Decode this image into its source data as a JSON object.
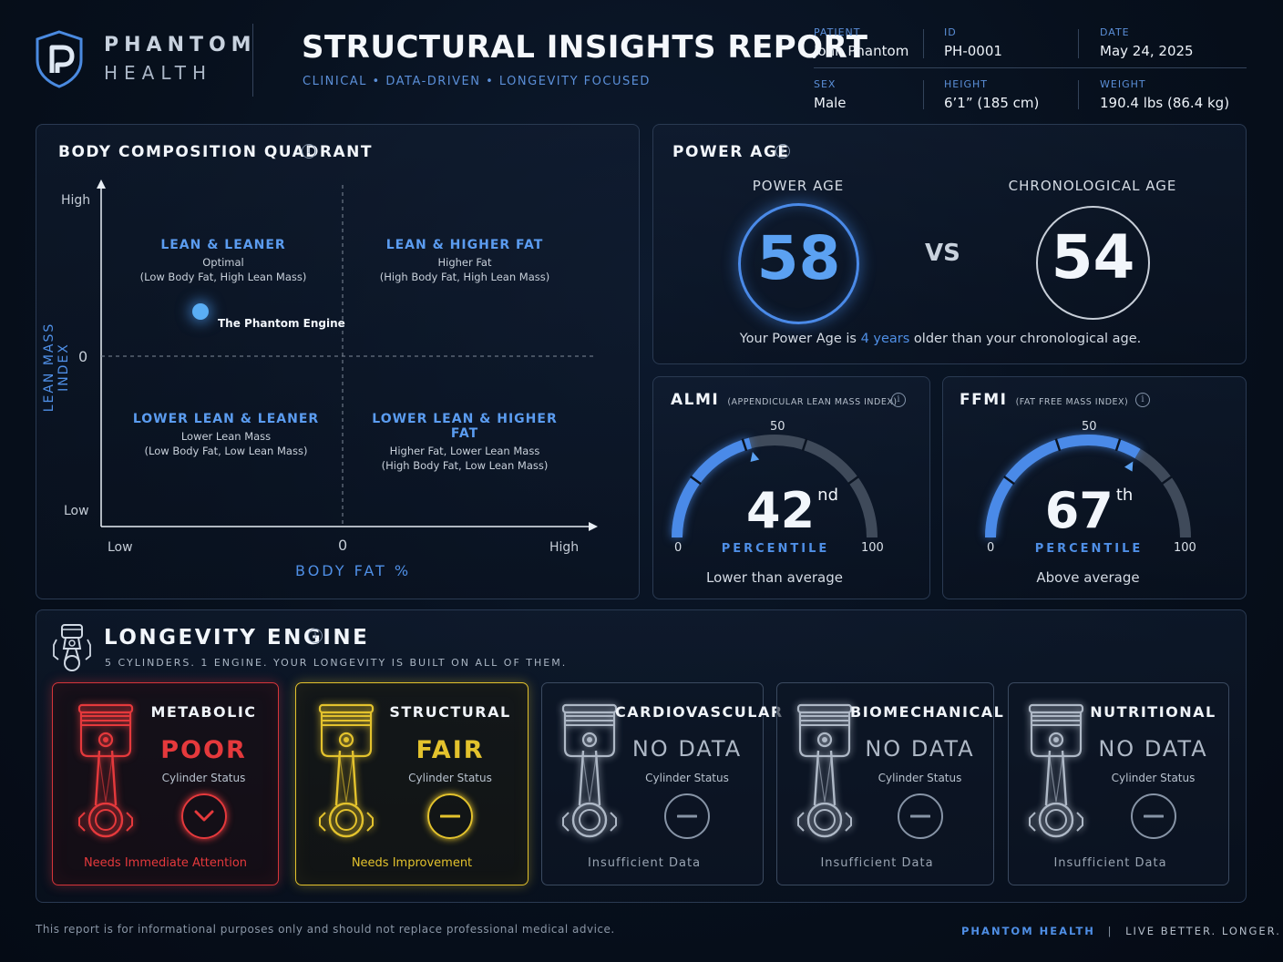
{
  "brand": {
    "line1": "PHANTOM",
    "line2": "HEALTH"
  },
  "report": {
    "title": "STRUCTURAL INSIGHTS REPORT",
    "subtitle": "CLINICAL  •  DATA-DRIVEN  •  LONGEVITY FOCUSED"
  },
  "patient": {
    "patient_label": "PATIENT",
    "patient_value": "John Phantom",
    "id_label": "ID",
    "id_value": "PH-0001",
    "date_label": "DATE",
    "date_value": "May 24, 2025",
    "sex_label": "SEX",
    "sex_value": "Male",
    "height_label": "HEIGHT",
    "height_value": "6’1” (185 cm)",
    "weight_label": "WEIGHT",
    "weight_value": "190.4 lbs (86.4 kg)"
  },
  "quadrant": {
    "title": "BODY COMPOSITION QUADRANT",
    "y_axis_label": "LEAN MASS INDEX",
    "x_axis_label": "BODY FAT %",
    "y_high": "High",
    "y_zero": "0",
    "y_low": "Low",
    "x_low": "Low",
    "x_zero": "0",
    "x_high": "High",
    "q1": {
      "head": "LEAN & LEANER",
      "line1": "Optimal",
      "line2": "(Low Body Fat, High Lean Mass)"
    },
    "q2": {
      "head": "LEAN & HIGHER FAT",
      "line1": "Higher Fat",
      "line2": "(High Body Fat, High Lean Mass)"
    },
    "q3": {
      "head": "LOWER LEAN & LEANER",
      "line1": "Lower Lean Mass",
      "line2": "(Low Body Fat, Low Lean Mass)"
    },
    "q4": {
      "head": "LOWER LEAN & HIGHER FAT",
      "line1": "Higher Fat, Lower Lean Mass",
      "line2": "(High Body Fat, Low Lean Mass)"
    },
    "point_label": "The Phantom Engine"
  },
  "power_age": {
    "title": "POWER AGE",
    "power_label": "POWER AGE",
    "power_value": "58",
    "vs": "VS",
    "chrono_label": "CHRONOLOGICAL AGE",
    "chrono_value": "54",
    "summary_pre": "Your Power Age is ",
    "summary_highlight": "4 years",
    "summary_post": " older than your chronological age."
  },
  "almi": {
    "title": "ALMI",
    "subtitle": "(APPENDICULAR LEAN MASS INDEX)",
    "min": "0",
    "mid": "50",
    "max": "100",
    "value": "42",
    "suffix": "nd",
    "percentile_word": "PERCENTILE",
    "description": "Lower than average",
    "percentile": 42
  },
  "ffmi": {
    "title": "FFMI",
    "subtitle": "(FAT FREE MASS INDEX)",
    "min": "0",
    "mid": "50",
    "max": "100",
    "value": "67",
    "suffix": "th",
    "percentile_word": "PERCENTILE",
    "description": "Above average",
    "percentile": 67
  },
  "longevity": {
    "title": "LONGEVITY ENGINE",
    "subtitle": "5 CYLINDERS. 1 ENGINE. YOUR LONGEVITY IS BUILT ON ALL OF THEM.",
    "cards": [
      {
        "name": "METABOLIC",
        "status": "POOR",
        "status_label": "Cylinder Status",
        "footer": "Needs Immediate Attention",
        "color": "#e5393c",
        "icon": "chevron-down-icon"
      },
      {
        "name": "STRUCTURAL",
        "status": "FAIR",
        "status_label": "Cylinder Status",
        "footer": "Needs Improvement",
        "color": "#e3c22d",
        "icon": "minus-icon"
      },
      {
        "name": "CARDIOVASCULAR",
        "status": "NO DATA",
        "status_label": "Cylinder Status",
        "footer": "Insufficient Data",
        "color": "#8794a6",
        "icon": "minus-icon"
      },
      {
        "name": "BIOMECHANICAL",
        "status": "NO DATA",
        "status_label": "Cylinder Status",
        "footer": "Insufficient Data",
        "color": "#8794a6",
        "icon": "minus-icon"
      },
      {
        "name": "NUTRITIONAL",
        "status": "NO DATA",
        "status_label": "Cylinder Status",
        "footer": "Insufficient Data",
        "color": "#8794a6",
        "icon": "minus-icon"
      }
    ]
  },
  "footer": {
    "disclaimer": "This report is for informational purposes only and should not replace professional medical advice.",
    "brand": "PHANTOM HEALTH",
    "sep": "|",
    "tagline": "LIVE BETTER. LONGER."
  },
  "colors": {
    "accent": "#4f8fe6",
    "poor": "#e5393c",
    "fair": "#e3c22d",
    "nodata": "#8794a6"
  }
}
